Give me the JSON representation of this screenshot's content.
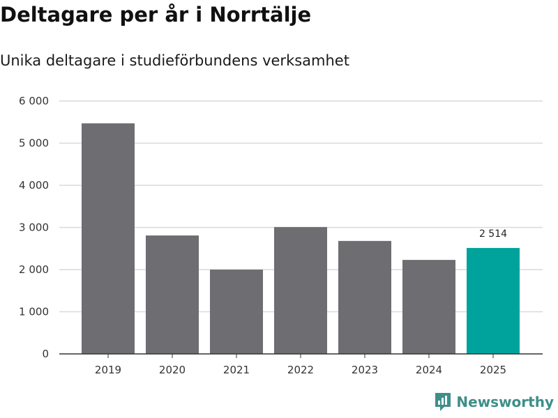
{
  "chart_data": {
    "type": "bar",
    "title": "Deltagare per år i Norrtälje",
    "subtitle": "Unika deltagare i studieförbundens verksamhet",
    "categories": [
      "2019",
      "2020",
      "2021",
      "2022",
      "2023",
      "2024",
      "2025"
    ],
    "values": [
      5470,
      2810,
      2000,
      3010,
      2680,
      2230,
      2514
    ],
    "highlight_index": 6,
    "highlight_label": "2 514",
    "ylim": [
      0,
      6000
    ],
    "yticks": [
      0,
      1000,
      2000,
      3000,
      4000,
      5000,
      6000
    ],
    "ytick_labels": [
      "0",
      "1 000",
      "2 000",
      "3 000",
      "4 000",
      "5 000",
      "6 000"
    ],
    "xlabel": "",
    "ylabel": "",
    "grid": true,
    "colors": {
      "bar": "#6e6d72",
      "highlight": "#00a39b",
      "grid": "#d9d9d9",
      "axis": "#333333"
    }
  },
  "brand": {
    "name": "Newsworthy",
    "icon": "newsworthy-logo-icon",
    "color": "#3e8f88"
  }
}
